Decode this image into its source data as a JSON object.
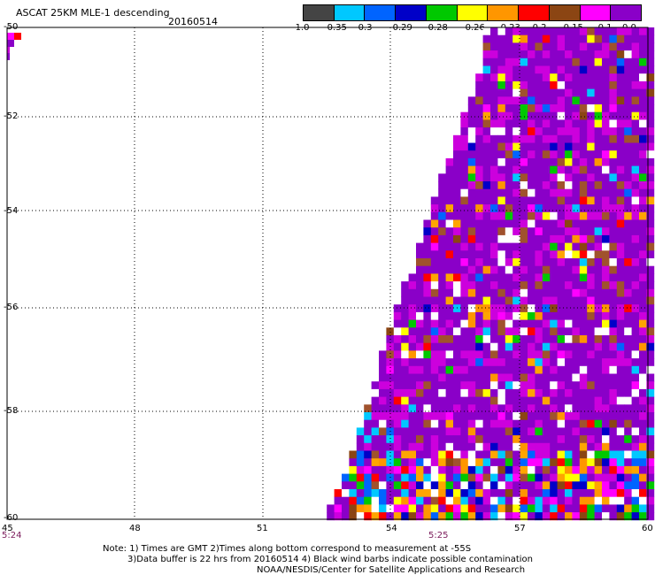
{
  "header": {
    "title": "ASCAT 25KM MLE-1 descending",
    "date": "20160514"
  },
  "colorbar": {
    "colors": [
      "#444444",
      "#00c8ff",
      "#0064ff",
      "#0000c8",
      "#00c800",
      "#ffff00",
      "#ff9600",
      "#ff0000",
      "#8b4513",
      "#ff00ff",
      "#8a00c8"
    ],
    "labels": [
      "-1.0",
      "-0.35",
      "-0.3",
      "-0.29",
      "-0.28",
      "-0.26",
      "-0.23",
      "-0.2",
      "-0.15",
      "-0.1",
      "0.0"
    ]
  },
  "axes": {
    "lat_labels": [
      "-50",
      "-52",
      "-54",
      "-56",
      "-58",
      "-60"
    ],
    "lon_labels": [
      "45",
      "48",
      "51",
      "54",
      "57",
      "60"
    ]
  },
  "times": {
    "left": "5:24",
    "middle": "5:25"
  },
  "note": {
    "line1": "Note: 1) Times are GMT 2)Times along bottom correspond to measurement at -55S",
    "line2": "3)Data buffer is 22 hrs from 20160514 4) Black wind barbs indicate possible contamination",
    "line3": "NOAA/NESDIS/Center for Satellite Applications and Research"
  }
}
